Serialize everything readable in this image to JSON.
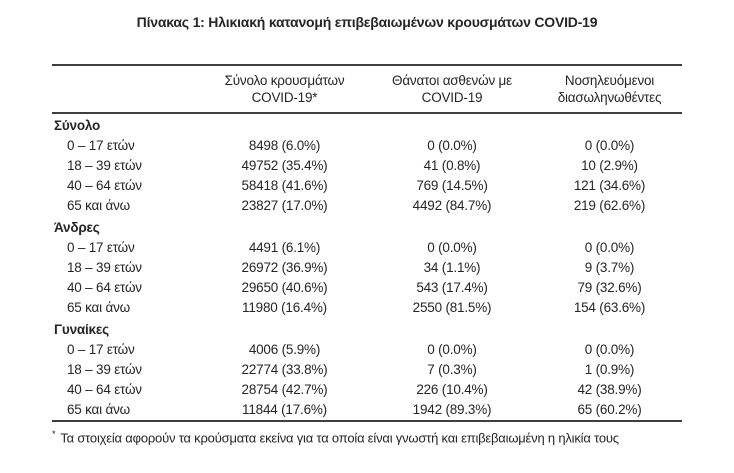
{
  "title": "Πίνακας 1: Ηλικιακή κατανομή επιβεβαιωμένων κρουσμάτων COVID-19",
  "table": {
    "columns": [
      "",
      "Σύνολο κρουσμάτων COVID-19*",
      "Θάνατοι ασθενών με COVID-19",
      "Νοσηλευόμενοι διασωληνωθέντες"
    ],
    "sections": [
      {
        "label": "Σύνολο",
        "rows": [
          {
            "age": "0 – 17 ετών",
            "cases": "8498 (6.0%)",
            "deaths": "0 (0.0%)",
            "intubated": "0 (0.0%)"
          },
          {
            "age": "18 – 39 ετών",
            "cases": "49752 (35.4%)",
            "deaths": "41 (0.8%)",
            "intubated": "10 (2.9%)"
          },
          {
            "age": "40 – 64 ετών",
            "cases": "58418 (41.6%)",
            "deaths": "769 (14.5%)",
            "intubated": "121 (34.6%)"
          },
          {
            "age": "65 και άνω",
            "cases": "23827 (17.0%)",
            "deaths": "4492 (84.7%)",
            "intubated": "219 (62.6%)"
          }
        ]
      },
      {
        "label": "Άνδρες",
        "rows": [
          {
            "age": "0 – 17 ετών",
            "cases": "4491 (6.1%)",
            "deaths": "0 (0.0%)",
            "intubated": "0 (0.0%)"
          },
          {
            "age": "18 – 39 ετών",
            "cases": "26972 (36.9%)",
            "deaths": "34 (1.1%)",
            "intubated": "9 (3.7%)"
          },
          {
            "age": "40 – 64 ετών",
            "cases": "29650 (40.6%)",
            "deaths": "543 (17.4%)",
            "intubated": "79 (32.6%)"
          },
          {
            "age": "65 και άνω",
            "cases": "11980 (16.4%)",
            "deaths": "2550 (81.5%)",
            "intubated": "154 (63.6%)"
          }
        ]
      },
      {
        "label": "Γυναίκες",
        "rows": [
          {
            "age": "0 – 17 ετών",
            "cases": "4006 (5.9%)",
            "deaths": "0 (0.0%)",
            "intubated": "0 (0.0%)"
          },
          {
            "age": "18 – 39 ετών",
            "cases": "22774 (33.8%)",
            "deaths": "7 (0.3%)",
            "intubated": "1 (0.9%)"
          },
          {
            "age": "40 – 64 ετών",
            "cases": "28754 (42.7%)",
            "deaths": "226 (10.4%)",
            "intubated": "42 (38.9%)"
          },
          {
            "age": "65 και άνω",
            "cases": "11844 (17.6%)",
            "deaths": "1942 (89.3%)",
            "intubated": "65 (60.2%)"
          }
        ]
      }
    ]
  },
  "footnote": {
    "marker": "*",
    "text": "Τα στοιχεία αφορούν τα κρούσματα εκείνα για τα οποία είναι γνωστή και επιβεβαιωμένη η ηλικία τους"
  },
  "colors": {
    "text": "#262626",
    "rule": "#3f3f3f",
    "background": "#ffffff"
  }
}
